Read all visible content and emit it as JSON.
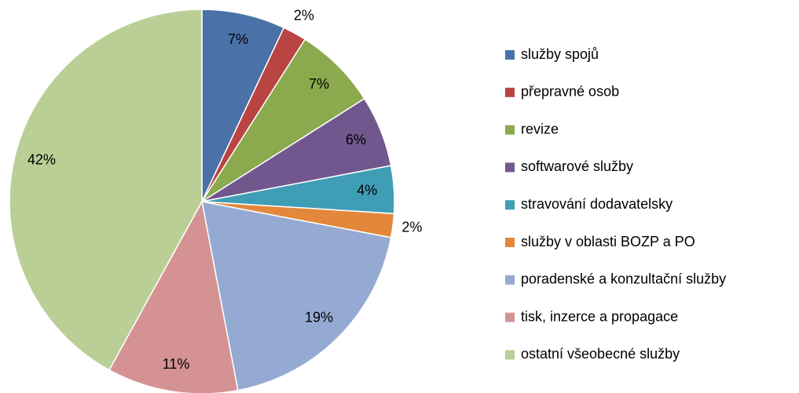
{
  "chart_data": {
    "type": "pie",
    "categories": [
      "služby spojů",
      "přepravné osob",
      "revize",
      "softwarové služby",
      "stravování dodavatelsky",
      "služby v oblasti BOZP a PO",
      "poradenské a konzultační služby",
      "tisk, inzerce a propagace",
      "ostatní všeobecné služby"
    ],
    "values": [
      7,
      2,
      7,
      6,
      4,
      2,
      19,
      11,
      42
    ],
    "value_labels": [
      "7%",
      "2%",
      "7%",
      "6%",
      "4%",
      "2%",
      "19%",
      "11%",
      "42%"
    ],
    "colors": [
      "#4a71a8",
      "#b94442",
      "#8aaa4d",
      "#72578f",
      "#3f9db5",
      "#e3873b",
      "#95aad3",
      "#d49392",
      "#b9cf95"
    ],
    "legend": "right"
  }
}
